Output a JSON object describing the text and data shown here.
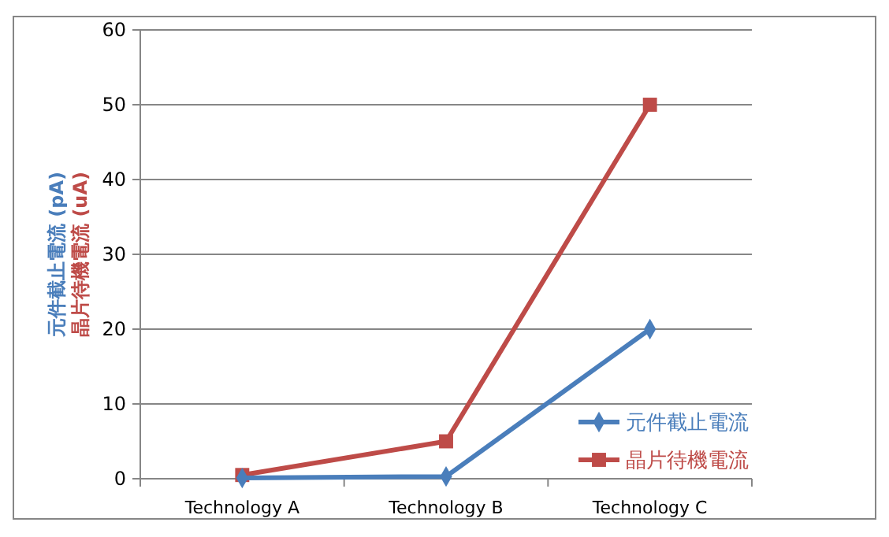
{
  "chart_data": {
    "type": "line",
    "categories": [
      "Technology A",
      "Technology B",
      "Technology C"
    ],
    "ylabel": "元件截止電流 (pA)\n晶片待機電流 (uA)",
    "series": [
      {
        "name": "元件截止電流",
        "color": "#4a7ebb",
        "marker": "diamond",
        "values": [
          0.1,
          0.3,
          20
        ]
      },
      {
        "name": "晶片待機電流",
        "color": "#be4b48",
        "marker": "square",
        "values": [
          0.5,
          5,
          50
        ]
      }
    ],
    "ylim": [
      0,
      60
    ],
    "yticks": [
      0,
      10,
      20,
      30,
      40,
      50,
      60
    ],
    "grid": "y",
    "legend": "bottom right",
    "line_style": "solid"
  }
}
